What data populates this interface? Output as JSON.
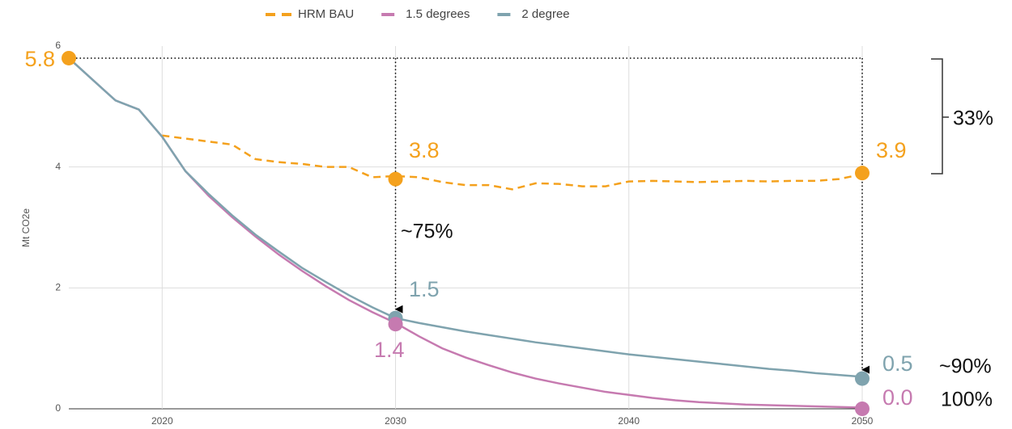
{
  "chart_data": {
    "type": "line",
    "y_label": "Mt CO2e",
    "x": [
      2016,
      2017,
      2018,
      2019,
      2020,
      2021,
      2022,
      2023,
      2024,
      2025,
      2026,
      2027,
      2028,
      2029,
      2030,
      2031,
      2032,
      2033,
      2034,
      2035,
      2036,
      2037,
      2038,
      2039,
      2040,
      2041,
      2042,
      2043,
      2044,
      2045,
      2046,
      2047,
      2048,
      2049,
      2050
    ],
    "series": [
      {
        "name": "HRM BAU",
        "color": "#f4a11d",
        "dashed": true,
        "values": [
          null,
          null,
          null,
          null,
          4.52,
          4.47,
          4.42,
          4.37,
          4.13,
          4.08,
          4.05,
          4.0,
          4.0,
          3.83,
          3.85,
          3.83,
          3.75,
          3.7,
          3.7,
          3.63,
          3.73,
          3.72,
          3.68,
          3.68,
          3.76,
          3.77,
          3.76,
          3.75,
          3.76,
          3.77,
          3.76,
          3.77,
          3.77,
          3.8,
          3.88
        ]
      },
      {
        "name": "1.5 degrees",
        "color": "#c67ab0",
        "values": [
          5.8,
          5.45,
          5.1,
          4.95,
          4.5,
          3.93,
          3.52,
          3.17,
          2.85,
          2.55,
          2.28,
          2.03,
          1.8,
          1.6,
          1.42,
          1.2,
          1.0,
          0.85,
          0.72,
          0.6,
          0.5,
          0.42,
          0.35,
          0.28,
          0.23,
          0.18,
          0.14,
          0.11,
          0.09,
          0.07,
          0.06,
          0.05,
          0.04,
          0.03,
          0.02
        ]
      },
      {
        "name": "2 degree",
        "color": "#7fa3ae",
        "values": [
          5.8,
          5.45,
          5.1,
          4.95,
          4.5,
          3.93,
          3.55,
          3.2,
          2.88,
          2.6,
          2.33,
          2.1,
          1.88,
          1.68,
          1.5,
          1.42,
          1.35,
          1.28,
          1.22,
          1.16,
          1.1,
          1.05,
          1.0,
          0.95,
          0.9,
          0.86,
          0.82,
          0.78,
          0.74,
          0.7,
          0.66,
          0.63,
          0.59,
          0.56,
          0.53
        ]
      }
    ],
    "xlim": [
      2016,
      2050
    ],
    "xticks": [
      2020,
      2030,
      2040,
      2050
    ],
    "ylim": [
      0,
      6
    ],
    "yticks": [
      0,
      2,
      4,
      6
    ],
    "grid": true,
    "legend": "top",
    "markers": [
      {
        "x": 2016,
        "y": 5.8,
        "label": "5.8",
        "series": 0
      },
      {
        "x": 2030,
        "y": 3.8,
        "label": "3.8",
        "series": 0
      },
      {
        "x": 2050,
        "y": 3.9,
        "label": "3.9",
        "series": 0
      },
      {
        "x": 2030,
        "y": 1.5,
        "label": "1.5",
        "series": 2
      },
      {
        "x": 2030,
        "y": 1.4,
        "label": "1.4",
        "series": 1
      },
      {
        "x": 2050,
        "y": 0.5,
        "label": "0.5",
        "series": 2
      },
      {
        "x": 2050,
        "y": 0.0,
        "label": "0.0",
        "series": 1
      }
    ],
    "annotations": [
      "~75%",
      "~90%",
      "100%",
      "33%"
    ]
  }
}
